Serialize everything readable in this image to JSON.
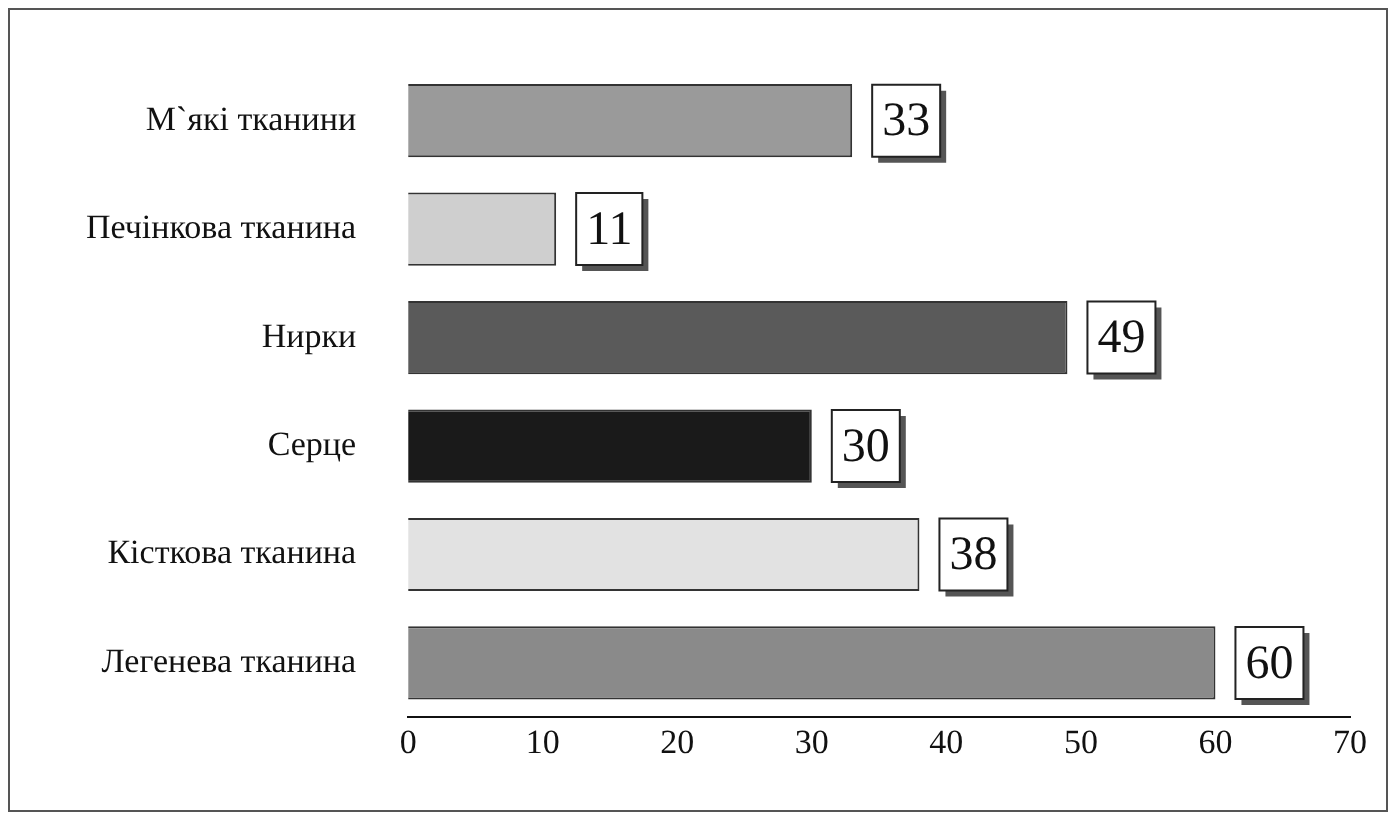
{
  "chart_data": {
    "type": "bar",
    "orientation": "horizontal",
    "categories": [
      "М`які тканини",
      "Печінкова тканина",
      "Нирки",
      "Серце",
      "Кісткова тканина",
      "Легенева тканина"
    ],
    "values": [
      33,
      11,
      49,
      30,
      38,
      60
    ],
    "colors": [
      "#9a9a9a",
      "#cfcfcf",
      "#5a5a5a",
      "#1a1a1a",
      "#e2e2e2",
      "#8a8a8a"
    ],
    "xlim": [
      0,
      70
    ],
    "xticks": [
      0,
      10,
      20,
      30,
      40,
      50,
      60,
      70
    ],
    "grid": false,
    "legend": false,
    "data_labels": true
  }
}
